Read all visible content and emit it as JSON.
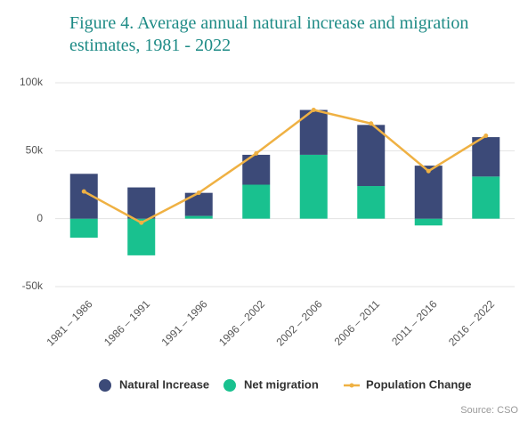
{
  "chart_data": {
    "type": "bar",
    "title": "Figure 4. Average annual natural increase and migration estimates,  1981 - 2022",
    "categories": [
      "1981 – 1986",
      "1986 – 1991",
      "1991 – 1996",
      "1996 – 2002",
      "2002 – 2006",
      "2006 – 2011",
      "2011 – 2016",
      "2016 – 2022"
    ],
    "series": [
      {
        "name": "Natural Increase",
        "type": "bar",
        "color": "#3c4a78",
        "values": [
          33000,
          23000,
          17000,
          22000,
          33000,
          45000,
          39000,
          29000
        ]
      },
      {
        "name": "Net migration",
        "type": "bar",
        "color": "#19c18f",
        "values": [
          -14000,
          -27000,
          2000,
          25000,
          47000,
          24000,
          -5000,
          31000
        ]
      },
      {
        "name": "Population Change",
        "type": "line",
        "color": "#efb143",
        "values": [
          20000,
          -3000,
          19000,
          48000,
          80000,
          70000,
          35000,
          61000
        ]
      }
    ],
    "ylim": [
      -50000,
      100000
    ],
    "yticks": [
      {
        "value": -50000,
        "label": "-50k"
      },
      0,
      {
        "value": 50000,
        "label": "50k"
      },
      {
        "value": 100000,
        "label": "100k"
      }
    ],
    "grid": true,
    "source": "Source: CSO"
  }
}
